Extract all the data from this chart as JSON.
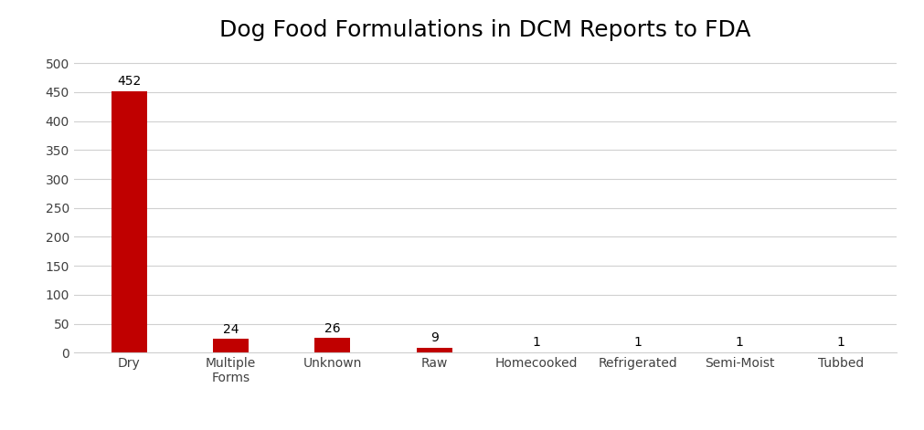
{
  "title": "Dog Food Formulations in DCM Reports to FDA",
  "categories": [
    "Dry",
    "Multiple\nForms",
    "Unknown",
    "Raw",
    "Homecooked",
    "Refrigerated",
    "Semi-Moist",
    "Tubbed"
  ],
  "values": [
    452,
    24,
    26,
    9,
    1,
    1,
    1,
    1
  ],
  "bar_color": "#c00000",
  "bar_width": 0.35,
  "ylim": [
    0,
    520
  ],
  "yticks": [
    0,
    50,
    100,
    150,
    200,
    250,
    300,
    350,
    400,
    450,
    500
  ],
  "title_fontsize": 18,
  "tick_fontsize": 10,
  "value_label_fontsize": 10,
  "background_color": "#ffffff",
  "grid_color": "#d0d0d0",
  "figure_width": 10.11,
  "figure_height": 4.71,
  "dpi": 100
}
